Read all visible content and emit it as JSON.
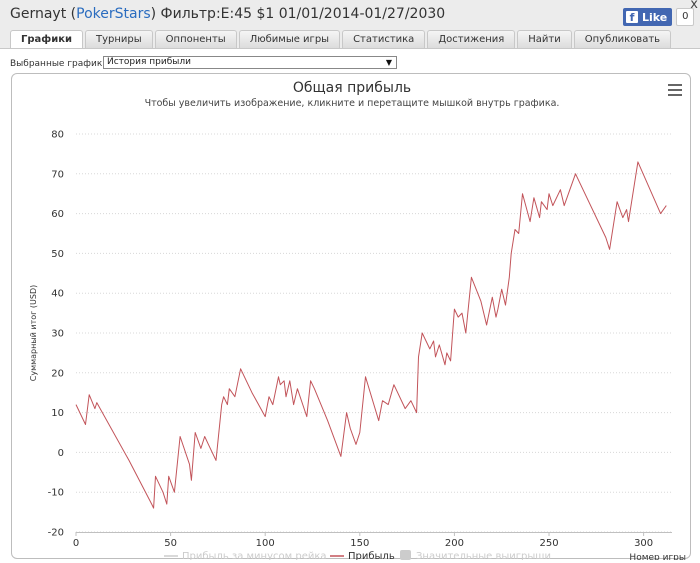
{
  "header": {
    "player": "Gernayt",
    "site": "PokerStars",
    "filter": "Фильтр:E:45 $1 01/01/2014-01/27/2030",
    "like_label": "Like",
    "like_count": "0",
    "close_glyph": "x"
  },
  "tabs": [
    {
      "label": "Графики",
      "active": true
    },
    {
      "label": "Турниры",
      "active": false
    },
    {
      "label": "Оппоненты",
      "active": false
    },
    {
      "label": "Любимые игры",
      "active": false
    },
    {
      "label": "Статистика",
      "active": false
    },
    {
      "label": "Достижения",
      "active": false
    },
    {
      "label": "Найти",
      "active": false
    },
    {
      "label": "Опубликовать",
      "active": false
    }
  ],
  "selector": {
    "label": "Выбранные графики:",
    "value": "История прибыли"
  },
  "colors": {
    "line": "#c2545a",
    "legend_inactive": "#cccccc",
    "title": "#333333",
    "grid": "#d8d8d8"
  },
  "chart_data": {
    "type": "line",
    "title": "Общая прибыль",
    "subtitle": "Чтобы увеличить изображение, кликните и перетащите мышкой внутрь графика.",
    "ylabel": "Суммарный итог (USD)",
    "xlabel": "Номер игры",
    "xlim": [
      0,
      315
    ],
    "ylim": [
      -20,
      80
    ],
    "x_ticks": [
      0,
      50,
      100,
      150,
      200,
      250,
      300
    ],
    "y_ticks": [
      -20,
      -10,
      0,
      10,
      20,
      30,
      40,
      50,
      60,
      70,
      80
    ],
    "grid": "horizontal dotted",
    "legend": [
      {
        "name": "Прибыль за минусом рейка",
        "active": false
      },
      {
        "name": "Прибыль",
        "active": true
      },
      {
        "name": "Значительные выигрыши",
        "active": false
      }
    ],
    "series": [
      {
        "name": "Прибыль",
        "points": [
          [
            0,
            12
          ],
          [
            5,
            7
          ],
          [
            7,
            14.5
          ],
          [
            10,
            11
          ],
          [
            11,
            12.5
          ],
          [
            28,
            -2
          ],
          [
            40,
            -13
          ],
          [
            41,
            -14
          ],
          [
            42,
            -6
          ],
          [
            46,
            -10
          ],
          [
            48,
            -13
          ],
          [
            49,
            -6
          ],
          [
            52,
            -10
          ],
          [
            55,
            4
          ],
          [
            60,
            -3
          ],
          [
            61,
            -7
          ],
          [
            63,
            5
          ],
          [
            66,
            1
          ],
          [
            68,
            4
          ],
          [
            70,
            2
          ],
          [
            74,
            -2
          ],
          [
            77,
            12
          ],
          [
            78,
            14
          ],
          [
            80,
            12
          ],
          [
            81,
            16
          ],
          [
            84,
            14
          ],
          [
            87,
            21
          ],
          [
            93,
            15
          ],
          [
            100,
            9
          ],
          [
            102,
            14
          ],
          [
            104,
            12
          ],
          [
            107,
            19
          ],
          [
            108,
            17
          ],
          [
            110,
            18
          ],
          [
            111,
            14
          ],
          [
            113,
            18
          ],
          [
            115,
            12
          ],
          [
            117,
            16
          ],
          [
            122,
            9
          ],
          [
            124,
            18
          ],
          [
            126,
            16
          ],
          [
            133,
            8
          ],
          [
            140,
            -1
          ],
          [
            143,
            10
          ],
          [
            145,
            6
          ],
          [
            148,
            2
          ],
          [
            150,
            5
          ],
          [
            153,
            19
          ],
          [
            160,
            8
          ],
          [
            162,
            13
          ],
          [
            165,
            12
          ],
          [
            168,
            17
          ],
          [
            174,
            11
          ],
          [
            177,
            13
          ],
          [
            180,
            10
          ],
          [
            181,
            24
          ],
          [
            183,
            30
          ],
          [
            187,
            26
          ],
          [
            189,
            28
          ],
          [
            190,
            24
          ],
          [
            192,
            27
          ],
          [
            195,
            22
          ],
          [
            196,
            25
          ],
          [
            198,
            23
          ],
          [
            200,
            36
          ],
          [
            202,
            34
          ],
          [
            204,
            35
          ],
          [
            206,
            30
          ],
          [
            209,
            44
          ],
          [
            214,
            38
          ],
          [
            217,
            32
          ],
          [
            220,
            39
          ],
          [
            222,
            34
          ],
          [
            223,
            36
          ],
          [
            225,
            41
          ],
          [
            227,
            37
          ],
          [
            229,
            44
          ],
          [
            230,
            50
          ],
          [
            232,
            56
          ],
          [
            234,
            55
          ],
          [
            236,
            65
          ],
          [
            240,
            58
          ],
          [
            242,
            64
          ],
          [
            245,
            59
          ],
          [
            246,
            63
          ],
          [
            249,
            61
          ],
          [
            250,
            65
          ],
          [
            252,
            62
          ],
          [
            256,
            66
          ],
          [
            258,
            62
          ],
          [
            264,
            70
          ],
          [
            280,
            54
          ],
          [
            282,
            51
          ],
          [
            286,
            63
          ],
          [
            289,
            59
          ],
          [
            291,
            61
          ],
          [
            292,
            58
          ],
          [
            297,
            73
          ],
          [
            309,
            60
          ],
          [
            312,
            62
          ]
        ]
      }
    ]
  }
}
